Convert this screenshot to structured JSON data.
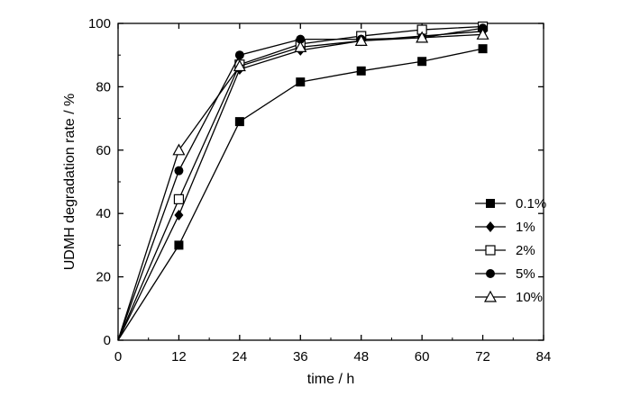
{
  "chart_data": {
    "type": "line",
    "xlabel": "time / h",
    "ylabel": "UDMH degradation rate / %",
    "xlim": [
      0,
      84
    ],
    "ylim": [
      0,
      100
    ],
    "xticks": [
      "0",
      "12",
      "24",
      "36",
      "48",
      "60",
      "72",
      "84"
    ],
    "yticks": [
      "0",
      "20",
      "40",
      "60",
      "80",
      "100"
    ],
    "grid": false,
    "legend_position": "right",
    "x": [
      0,
      12,
      24,
      36,
      48,
      60,
      72
    ],
    "series": [
      {
        "name": "0.1%",
        "marker": "filled-square",
        "values": [
          0,
          30,
          69,
          81.5,
          85,
          88,
          92
        ]
      },
      {
        "name": "1%",
        "marker": "filled-diamond",
        "values": [
          0,
          39.5,
          85.5,
          91.5,
          94.5,
          96,
          97.5
        ]
      },
      {
        "name": "2%",
        "marker": "open-square",
        "values": [
          0,
          44.5,
          87,
          93.5,
          96,
          98,
          99
        ]
      },
      {
        "name": "5%",
        "marker": "filled-circle",
        "values": [
          0,
          53.5,
          90,
          95,
          95,
          95.5,
          98.5
        ]
      },
      {
        "name": "10%",
        "marker": "open-triangle",
        "values": [
          0,
          60,
          86.5,
          92.5,
          94.5,
          95.5,
          96.5
        ]
      }
    ]
  }
}
